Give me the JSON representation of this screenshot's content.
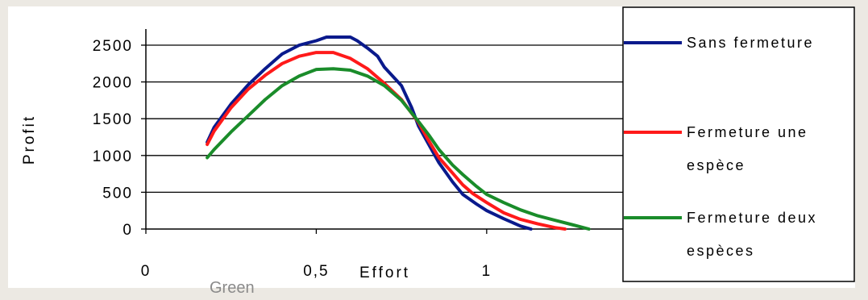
{
  "caption": "Green",
  "chart_data": {
    "type": "line",
    "title": "",
    "xlabel": "Effort",
    "ylabel": "Profit",
    "xlim": [
      0,
      1.4
    ],
    "ylim": [
      0,
      2500
    ],
    "x_ticks": [
      {
        "value": 0,
        "label": "0"
      },
      {
        "value": 0.5,
        "label": "0,5"
      },
      {
        "value": 1,
        "label": "1"
      }
    ],
    "y_ticks": [
      {
        "value": 0,
        "label": "0"
      },
      {
        "value": 500,
        "label": "500"
      },
      {
        "value": 1000,
        "label": "1000"
      },
      {
        "value": 1500,
        "label": "1500"
      },
      {
        "value": 2000,
        "label": "2000"
      },
      {
        "value": 2500,
        "label": "2500"
      }
    ],
    "grid": true,
    "legend_position": "right",
    "series": [
      {
        "name": "Sans fermeture",
        "color": "#0a1a8c",
        "points": [
          [
            0.18,
            1180
          ],
          [
            0.2,
            1380
          ],
          [
            0.25,
            1700
          ],
          [
            0.3,
            1960
          ],
          [
            0.35,
            2180
          ],
          [
            0.4,
            2380
          ],
          [
            0.45,
            2500
          ],
          [
            0.5,
            2560
          ],
          [
            0.53,
            2610
          ],
          [
            0.6,
            2610
          ],
          [
            0.62,
            2560
          ],
          [
            0.65,
            2460
          ],
          [
            0.68,
            2350
          ],
          [
            0.7,
            2200
          ],
          [
            0.75,
            1950
          ],
          [
            0.78,
            1650
          ],
          [
            0.8,
            1400
          ],
          [
            0.83,
            1150
          ],
          [
            0.86,
            900
          ],
          [
            0.9,
            640
          ],
          [
            0.93,
            470
          ],
          [
            0.97,
            340
          ],
          [
            1.0,
            250
          ],
          [
            1.05,
            140
          ],
          [
            1.1,
            40
          ],
          [
            1.13,
            0
          ]
        ]
      },
      {
        "name": "Fermeture une espèce",
        "color": "#ff1a1a",
        "points": [
          [
            0.18,
            1150
          ],
          [
            0.2,
            1330
          ],
          [
            0.25,
            1650
          ],
          [
            0.3,
            1900
          ],
          [
            0.35,
            2090
          ],
          [
            0.4,
            2250
          ],
          [
            0.45,
            2350
          ],
          [
            0.5,
            2400
          ],
          [
            0.55,
            2400
          ],
          [
            0.6,
            2320
          ],
          [
            0.65,
            2180
          ],
          [
            0.7,
            1980
          ],
          [
            0.75,
            1760
          ],
          [
            0.8,
            1450
          ],
          [
            0.83,
            1200
          ],
          [
            0.86,
            970
          ],
          [
            0.9,
            760
          ],
          [
            0.93,
            600
          ],
          [
            0.96,
            480
          ],
          [
            1.0,
            360
          ],
          [
            1.05,
            220
          ],
          [
            1.1,
            130
          ],
          [
            1.15,
            70
          ],
          [
            1.2,
            20
          ],
          [
            1.23,
            0
          ]
        ]
      },
      {
        "name": "Fermeture deux espèces",
        "color": "#1a8c2a",
        "points": [
          [
            0.18,
            970
          ],
          [
            0.2,
            1080
          ],
          [
            0.25,
            1320
          ],
          [
            0.3,
            1540
          ],
          [
            0.35,
            1760
          ],
          [
            0.4,
            1950
          ],
          [
            0.45,
            2080
          ],
          [
            0.5,
            2170
          ],
          [
            0.55,
            2180
          ],
          [
            0.6,
            2160
          ],
          [
            0.65,
            2080
          ],
          [
            0.7,
            1950
          ],
          [
            0.75,
            1750
          ],
          [
            0.8,
            1460
          ],
          [
            0.83,
            1280
          ],
          [
            0.86,
            1080
          ],
          [
            0.9,
            870
          ],
          [
            0.93,
            740
          ],
          [
            0.97,
            580
          ],
          [
            1.0,
            470
          ],
          [
            1.05,
            360
          ],
          [
            1.1,
            260
          ],
          [
            1.15,
            180
          ],
          [
            1.2,
            120
          ],
          [
            1.25,
            60
          ],
          [
            1.3,
            0
          ]
        ]
      }
    ]
  }
}
